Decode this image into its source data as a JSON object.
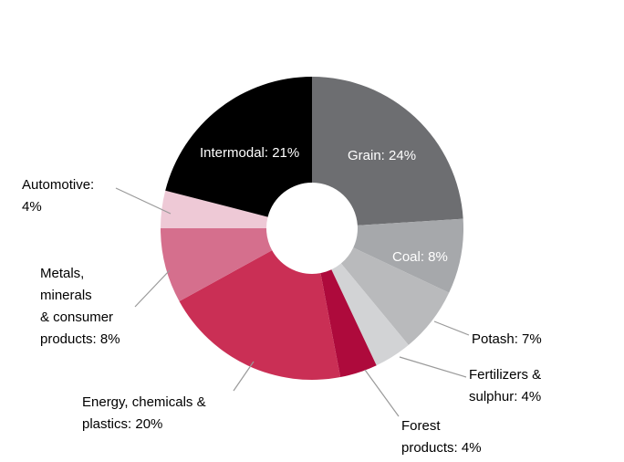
{
  "chart_data": {
    "type": "pie",
    "subtype": "donut",
    "title": "",
    "start_angle_deg": 0,
    "direction": "clockwise",
    "units": "%",
    "segments": [
      {
        "label": "Grain",
        "value": 24,
        "color": "#6d6e71",
        "display_text": "Grain: 24%",
        "label_placement": "inside"
      },
      {
        "label": "Coal",
        "value": 8,
        "color": "#a6a8ab",
        "display_text": "Coal: 8%",
        "label_placement": "inside"
      },
      {
        "label": "Potash",
        "value": 7,
        "color": "#b9babc",
        "display_text": "Potash: 7%",
        "label_placement": "outside"
      },
      {
        "label": "Fertilizers & sulphur",
        "value": 4,
        "color": "#d2d3d5",
        "display_text": "Fertilizers & sulphur: 4%",
        "label_placement": "outside"
      },
      {
        "label": "Forest products",
        "value": 4,
        "color": "#ae0a3c",
        "display_text": "Forest products: 4%",
        "label_placement": "outside"
      },
      {
        "label": "Energy, chemicals & plastics",
        "value": 20,
        "color": "#ca2f55",
        "display_text": "Energy, chemicals & plastics: 20%",
        "label_placement": "outside"
      },
      {
        "label": "Metals, minerals & consumer products",
        "value": 8,
        "color": "#d56f8d",
        "display_text": "Metals, minerals & consumer products: 8%",
        "label_placement": "outside"
      },
      {
        "label": "Automotive",
        "value": 4,
        "color": "#eec9d6",
        "display_text": "Automotive: 4%",
        "label_placement": "outside"
      },
      {
        "label": "Intermodal",
        "value": 21,
        "color": "#000000",
        "display_text": "Intermodal: 21%",
        "label_placement": "inside"
      }
    ]
  },
  "labels": {
    "grain": "Grain: 24%",
    "coal": "Coal: 8%",
    "intermodal": "Intermodal: 21%",
    "potash": "Potash: 7%",
    "fertilizers": [
      "Fertilizers &",
      "sulphur: 4%"
    ],
    "forest": [
      "Forest",
      "products: 4%"
    ],
    "energy": [
      "Energy, chemicals &",
      "plastics: 20%"
    ],
    "metals": [
      "Metals,",
      "minerals",
      "& consumer",
      "products: 8%"
    ],
    "automotive": [
      "Automotive:",
      "4%"
    ]
  },
  "style": {
    "background": "#ffffff",
    "inside_label_color": "#ffffff",
    "outside_label_color": "#000000",
    "leader_line_color": "#9a9a9a"
  }
}
